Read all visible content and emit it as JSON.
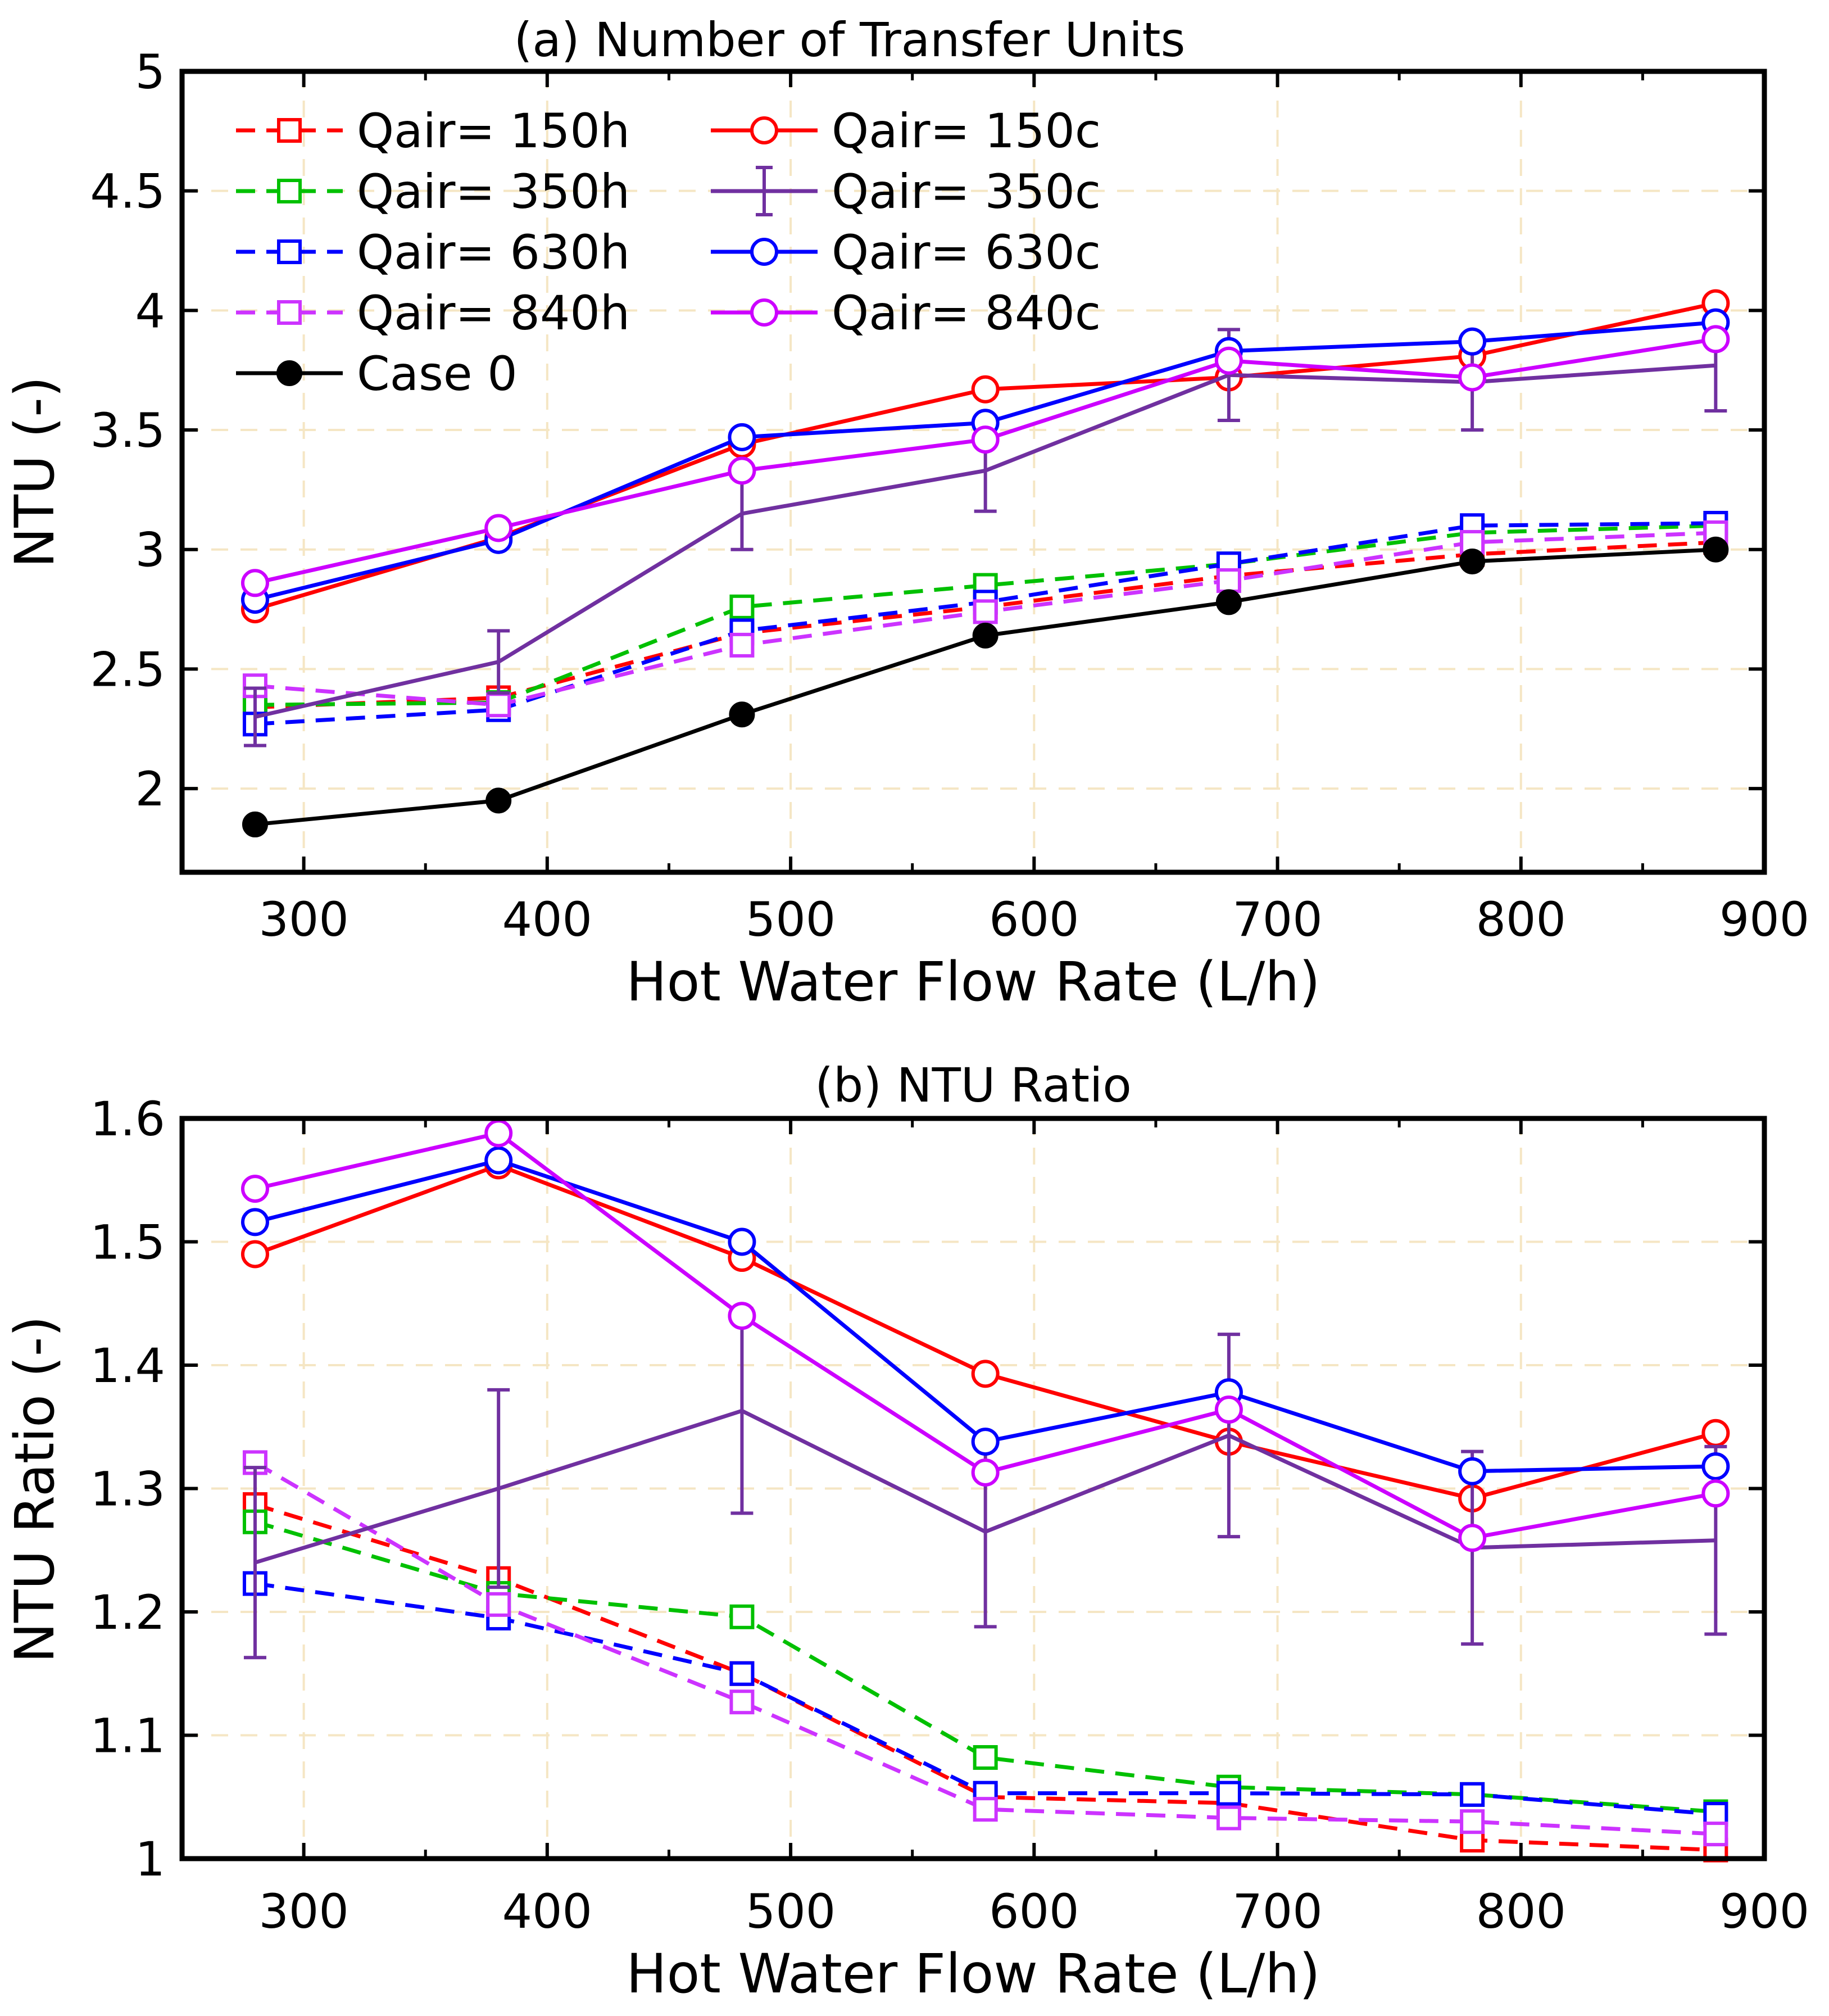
{
  "chart_data": [
    {
      "type": "line",
      "title": "(a) Number of Transfer Units",
      "xlabel": "Hot Water Flow Rate (L/h)",
      "ylabel": "NTU (-)",
      "xlim": [
        250,
        900
      ],
      "ylim": [
        1.65,
        5
      ],
      "xticks": [
        300,
        400,
        500,
        600,
        700,
        800,
        900
      ],
      "yticks": [
        2,
        2.5,
        3,
        3.5,
        4,
        4.5,
        5
      ],
      "ytick_labels": [
        "2",
        "2.5",
        "3",
        "3.5",
        "4",
        "4.5",
        "5"
      ],
      "grid": true,
      "legend_position": "top-left",
      "x": [
        280,
        380,
        480,
        580,
        680,
        780,
        880
      ],
      "series": [
        {
          "name": "Qair= 150h",
          "color": "#ff0000",
          "dash": true,
          "marker": "square",
          "values": [
            2.34,
            2.38,
            2.65,
            2.76,
            2.89,
            2.98,
            3.03
          ]
        },
        {
          "name": "Qair= 350h",
          "color": "#00c000",
          "dash": true,
          "marker": "square",
          "values": [
            2.35,
            2.36,
            2.76,
            2.85,
            2.94,
            3.07,
            3.1
          ]
        },
        {
          "name": "Qair= 630h",
          "color": "#0000ff",
          "dash": true,
          "marker": "square",
          "values": [
            2.27,
            2.33,
            2.66,
            2.78,
            2.94,
            3.1,
            3.11
          ]
        },
        {
          "name": "Qair= 840h",
          "color": "#cc33ff",
          "dash": true,
          "marker": "square",
          "values": [
            2.43,
            2.35,
            2.6,
            2.74,
            2.87,
            3.03,
            3.07
          ]
        },
        {
          "name": "Case 0",
          "color": "#000000",
          "dash": false,
          "marker": "filled-circle",
          "values": [
            1.85,
            1.95,
            2.31,
            2.64,
            2.78,
            2.95,
            3.0
          ]
        },
        {
          "name": "Qair= 150c",
          "color": "#ff0000",
          "dash": false,
          "marker": "circle",
          "values": [
            2.75,
            3.05,
            3.44,
            3.67,
            3.72,
            3.81,
            4.03
          ]
        },
        {
          "name": "Qair= 350c",
          "color": "#7030a0",
          "dash": false,
          "marker": "errorbar",
          "values": [
            2.3,
            2.53,
            3.15,
            3.33,
            3.73,
            3.7,
            3.77
          ],
          "errors": [
            0.12,
            0.13,
            0.15,
            0.17,
            0.19,
            0.2,
            0.19
          ]
        },
        {
          "name": "Qair= 630c",
          "color": "#0000ff",
          "dash": false,
          "marker": "circle",
          "values": [
            2.79,
            3.04,
            3.47,
            3.53,
            3.83,
            3.87,
            3.95
          ]
        },
        {
          "name": "Qair= 840c",
          "color": "#cc00ff",
          "dash": false,
          "marker": "circle",
          "values": [
            2.86,
            3.09,
            3.33,
            3.46,
            3.79,
            3.72,
            3.88
          ]
        }
      ]
    },
    {
      "type": "line",
      "title": "(b) NTU Ratio",
      "xlabel": "Hot Water Flow Rate (L/h)",
      "ylabel": "NTU Ratio (-)",
      "xlim": [
        250,
        900
      ],
      "ylim": [
        1,
        1.6
      ],
      "xticks": [
        300,
        400,
        500,
        600,
        700,
        800,
        900
      ],
      "yticks": [
        1,
        1.1,
        1.2,
        1.3,
        1.4,
        1.5,
        1.6
      ],
      "ytick_labels": [
        "1",
        "1.1",
        "1.2",
        "1.3",
        "1.4",
        "1.5",
        "1.6"
      ],
      "grid": true,
      "x": [
        280,
        380,
        480,
        580,
        680,
        780,
        880
      ],
      "series": [
        {
          "name": "Qair= 150h",
          "color": "#ff0000",
          "dash": true,
          "marker": "square",
          "values": [
            1.287,
            1.227,
            1.15,
            1.05,
            1.045,
            1.015,
            1.007
          ]
        },
        {
          "name": "Qair= 350h",
          "color": "#00c000",
          "dash": true,
          "marker": "square",
          "values": [
            1.273,
            1.215,
            1.196,
            1.082,
            1.058,
            1.052,
            1.038
          ]
        },
        {
          "name": "Qair= 630h",
          "color": "#0000ff",
          "dash": true,
          "marker": "square",
          "values": [
            1.223,
            1.195,
            1.15,
            1.053,
            1.053,
            1.052,
            1.036
          ]
        },
        {
          "name": "Qair= 840h",
          "color": "#cc33ff",
          "dash": true,
          "marker": "square",
          "values": [
            1.321,
            1.206,
            1.127,
            1.04,
            1.033,
            1.03,
            1.02
          ]
        },
        {
          "name": "Qair= 150c",
          "color": "#ff0000",
          "dash": false,
          "marker": "circle",
          "values": [
            1.49,
            1.562,
            1.487,
            1.393,
            1.338,
            1.292,
            1.345
          ]
        },
        {
          "name": "Qair= 350c",
          "color": "#7030a0",
          "dash": false,
          "marker": "errorbar",
          "values": [
            1.24,
            1.3,
            1.363,
            1.265,
            1.343,
            1.252,
            1.258
          ],
          "errors": [
            0.077,
            0.08,
            0.083,
            0.077,
            0.082,
            0.078,
            0.076
          ]
        },
        {
          "name": "Qair= 630c",
          "color": "#0000ff",
          "dash": false,
          "marker": "circle",
          "values": [
            1.516,
            1.566,
            1.5,
            1.338,
            1.378,
            1.314,
            1.318
          ]
        },
        {
          "name": "Qair= 840c",
          "color": "#cc00ff",
          "dash": false,
          "marker": "circle",
          "values": [
            1.543,
            1.588,
            1.44,
            1.313,
            1.364,
            1.26,
            1.296
          ]
        }
      ]
    }
  ]
}
